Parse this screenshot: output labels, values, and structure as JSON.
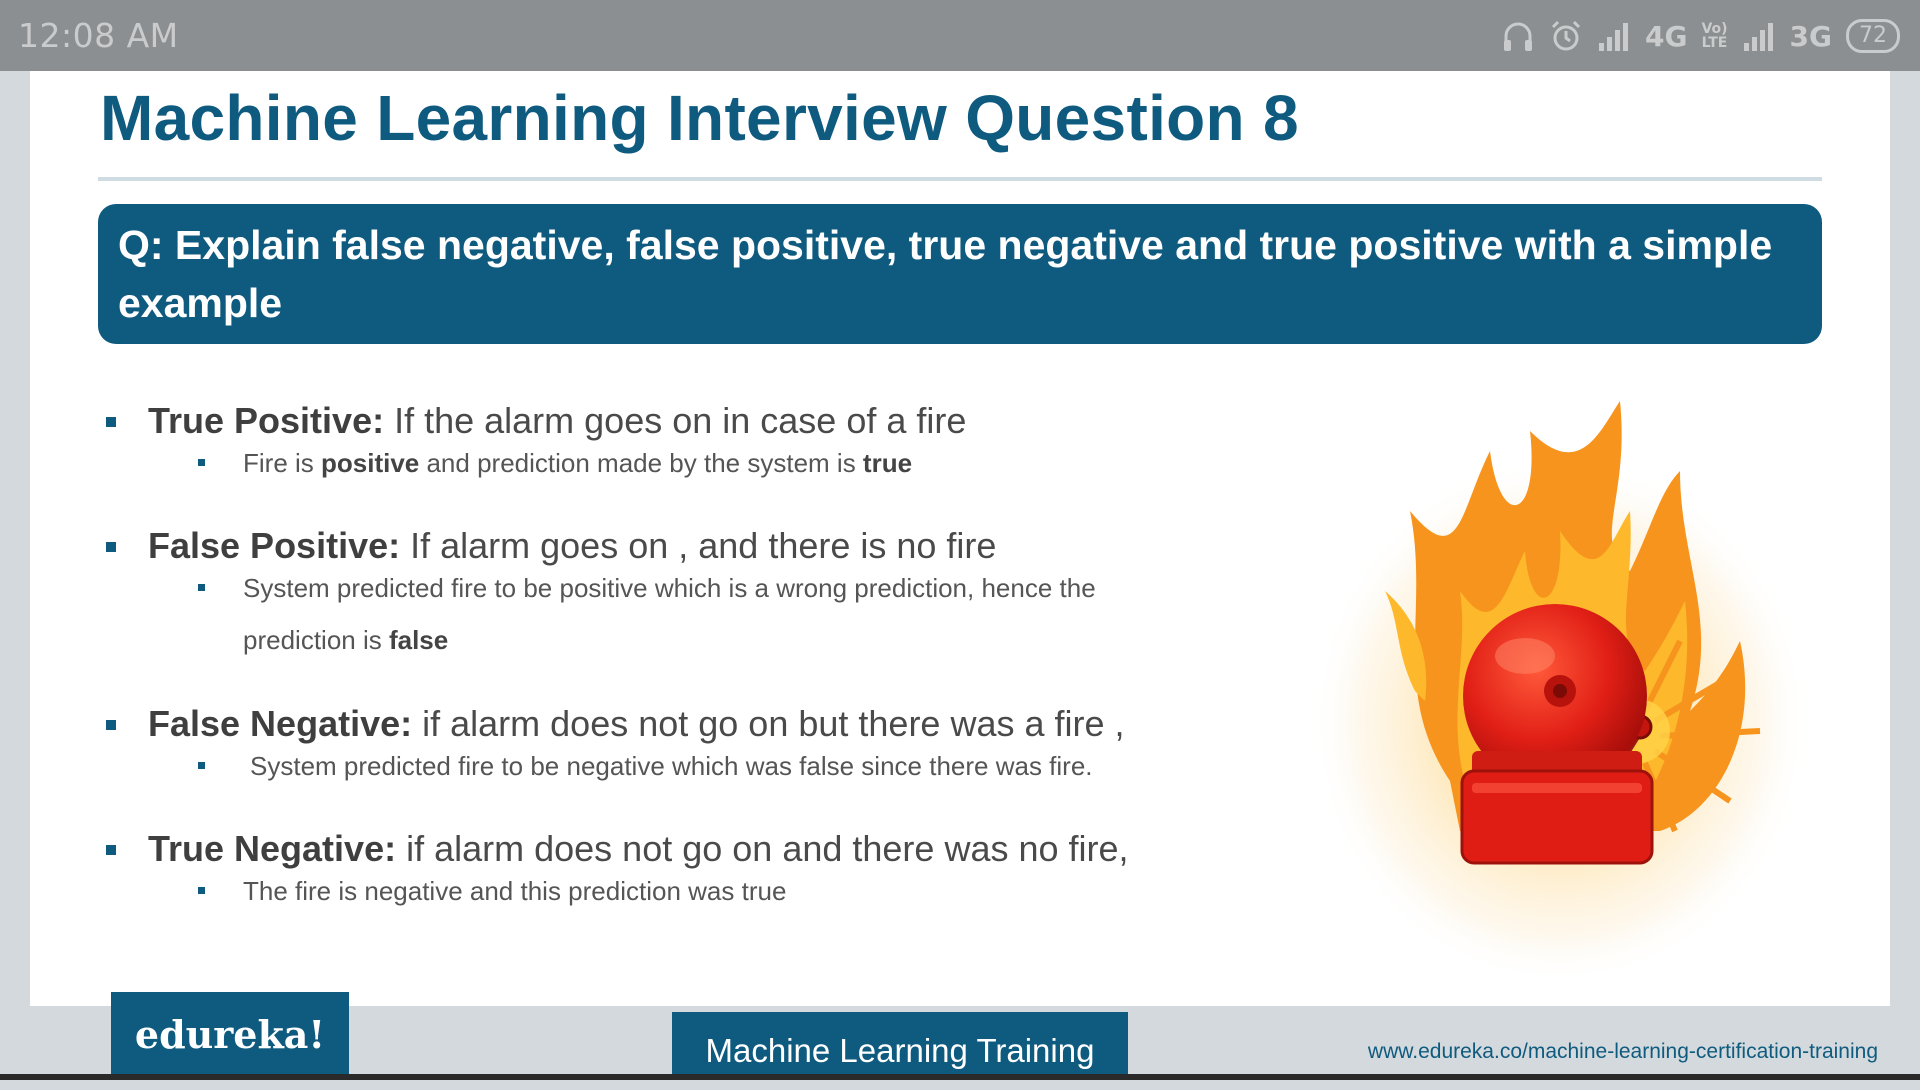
{
  "status_bar": {
    "time": "12:08 AM",
    "network_1": "4G",
    "volte_top": "Vo)",
    "volte_bottom": "LTE",
    "network_2": "3G",
    "battery": "72"
  },
  "slide": {
    "title": "Machine Learning Interview Question 8",
    "question": "Q: Explain false negative, false positive, true negative and true positive with a simple example",
    "bullets": [
      {
        "term": "True Positive:",
        "description": " If the alarm goes on in case of a fire",
        "sub": [
          {
            "t1": "Fire is ",
            "b1": "positive",
            "t2": " and prediction made by the system is ",
            "b2": "true"
          }
        ]
      },
      {
        "term": "False Positive:",
        "description": " If alarm goes on , and there is no fire",
        "sub": [
          {
            "t1": "System predicted fire to be positive which is a wrong prediction, hence the prediction is ",
            "b1": "false"
          }
        ]
      },
      {
        "term": "False Negative:",
        "description": " if alarm does not go on but there was a fire ,",
        "sub": [
          {
            "t1": "System predicted fire to be negative which was false since there was fire."
          }
        ]
      },
      {
        "term": "True Negative:",
        "description": " if alarm does not go on and there was no fire,",
        "sub": [
          {
            "t1": "The fire is negative and this prediction was true"
          }
        ]
      }
    ]
  },
  "footer": {
    "logo": "edureka!",
    "course": "Machine Learning Training",
    "url": "www.edureka.co/machine-learning-certification-training"
  },
  "colors": {
    "brand_blue": "#0f5b7f",
    "status_bar": "#8c8f91",
    "bell_red": "#d9231b",
    "flame_orange": "#f7941d"
  }
}
